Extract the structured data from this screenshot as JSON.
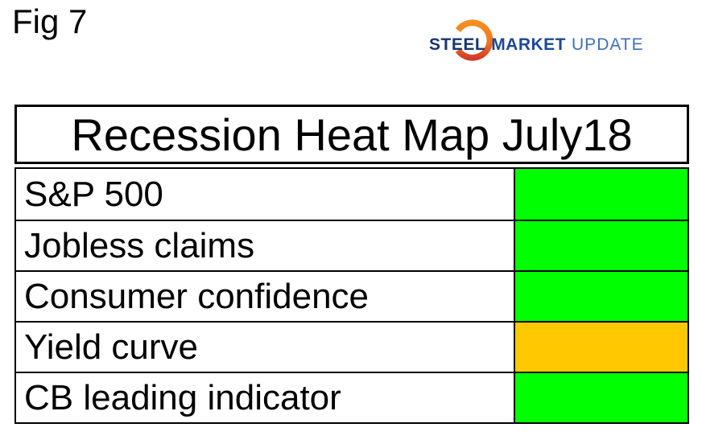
{
  "figure": {
    "label": "Fig 7"
  },
  "logo": {
    "steel": "STEEL",
    "market": "MARKET",
    "update": "UPDATE",
    "colors": {
      "steel_text": "#17356E",
      "market_text": "#1D4795",
      "update_text": "#4070B4",
      "crescent_top": "#F6921E",
      "crescent_bottom": "#CE3229"
    }
  },
  "heatmap": {
    "title": "Recession Heat Map July18",
    "status_colors": {
      "green": "#00FF00",
      "amber": "#FFC800"
    },
    "rows": [
      {
        "label": "S&P 500",
        "status": "green"
      },
      {
        "label": "Jobless claims",
        "status": "green"
      },
      {
        "label": "Consumer confidence",
        "status": "green"
      },
      {
        "label": "Yield curve",
        "status": "amber"
      },
      {
        "label": "CB leading indicator",
        "status": "green"
      }
    ]
  },
  "chart_data": {
    "type": "heatmap",
    "title": "Recession Heat Map July18",
    "categories": [
      "S&P 500",
      "Jobless claims",
      "Consumer confidence",
      "Yield curve",
      "CB leading indicator"
    ],
    "values": [
      "green",
      "green",
      "green",
      "amber",
      "green"
    ],
    "color_map": {
      "green": "#00FF00",
      "amber": "#FFC800"
    },
    "layout": "single column of status cells to the right of row labels, title row on top"
  }
}
